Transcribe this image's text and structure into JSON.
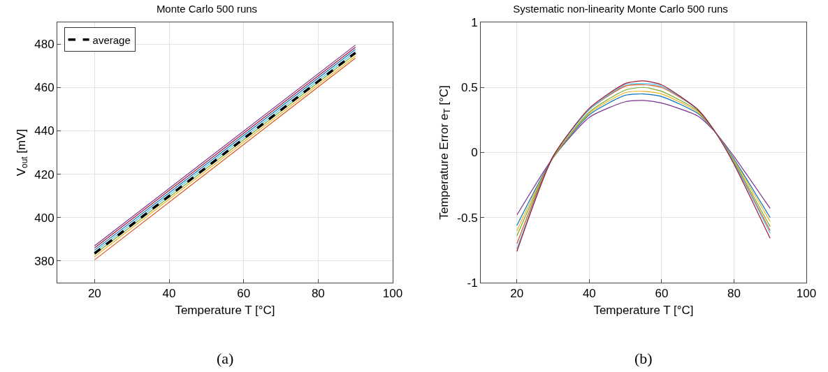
{
  "chart_data": [
    {
      "type": "line",
      "title": "Monte Carlo 500 runs",
      "xlabel": "Temperature T [°C]",
      "ylabel": "V$_{out}$ [mV]",
      "xlim": [
        10,
        100
      ],
      "xticks": [
        20,
        40,
        60,
        80,
        100
      ],
      "ylim": [
        370,
        490
      ],
      "yticks": [
        380,
        400,
        420,
        440,
        460,
        480
      ],
      "grid": true,
      "legend": "top left",
      "annotations": [
        "(a)"
      ],
      "x": [
        20,
        90
      ],
      "series": [
        {
          "color": "#7e2f8e",
          "values": [
            387,
            479.5
          ]
        },
        {
          "color": "#a2142f",
          "values": [
            386,
            478.5
          ]
        },
        {
          "color": "#0072bd",
          "values": [
            385,
            477.5
          ]
        },
        {
          "color": "#4dbeee",
          "values": [
            384,
            476.5
          ]
        },
        {
          "color": "#77ac30",
          "values": [
            383,
            475.5
          ]
        },
        {
          "color": "#edb120",
          "values": [
            382,
            474.5
          ]
        },
        {
          "color": "#d95319",
          "values": [
            380.5,
            473.5
          ]
        },
        {
          "name": "average",
          "color": "#000000",
          "line_style": "dashed",
          "values": [
            383.5,
            476
          ]
        }
      ]
    },
    {
      "type": "line",
      "title": "Systematic non-linearity Monte Carlo 500 runs",
      "xlabel": "Temperature T [°C]",
      "ylabel": "Temperature Error e$_{T}$ [°C]",
      "xlim": [
        10,
        100
      ],
      "xticks": [
        20,
        40,
        60,
        80,
        100
      ],
      "ylim": [
        -1,
        1
      ],
      "yticks": [
        -1,
        -0.5,
        0,
        0.5,
        1
      ],
      "grid": true,
      "annotations": [
        "(b)"
      ],
      "x": [
        20,
        30,
        40,
        50,
        55,
        60,
        70,
        75,
        80,
        90
      ],
      "series": [
        {
          "color": "#7e2f8e",
          "values": [
            -0.48,
            -0.04,
            0.27,
            0.39,
            0.4,
            0.38,
            0.28,
            0.15,
            -0.03,
            -0.43
          ]
        },
        {
          "color": "#0072bd",
          "values": [
            -0.56,
            -0.04,
            0.29,
            0.44,
            0.45,
            0.43,
            0.3,
            0.15,
            -0.05,
            -0.5
          ]
        },
        {
          "color": "#edb120",
          "values": [
            -0.6,
            -0.04,
            0.3,
            0.46,
            0.47,
            0.45,
            0.31,
            0.15,
            -0.06,
            -0.53
          ]
        },
        {
          "color": "#77ac30",
          "values": [
            -0.64,
            -0.04,
            0.31,
            0.48,
            0.5,
            0.47,
            0.32,
            0.15,
            -0.07,
            -0.57
          ]
        },
        {
          "color": "#d95319",
          "values": [
            -0.7,
            -0.03,
            0.33,
            0.51,
            0.52,
            0.5,
            0.33,
            0.15,
            -0.08,
            -0.6
          ]
        },
        {
          "color": "#4dbeee",
          "values": [
            -0.74,
            -0.03,
            0.33,
            0.52,
            0.53,
            0.51,
            0.33,
            0.15,
            -0.08,
            -0.62
          ]
        },
        {
          "color": "#a2142f",
          "values": [
            -0.76,
            -0.03,
            0.34,
            0.53,
            0.55,
            0.52,
            0.33,
            0.15,
            -0.09,
            -0.66
          ]
        }
      ]
    }
  ]
}
